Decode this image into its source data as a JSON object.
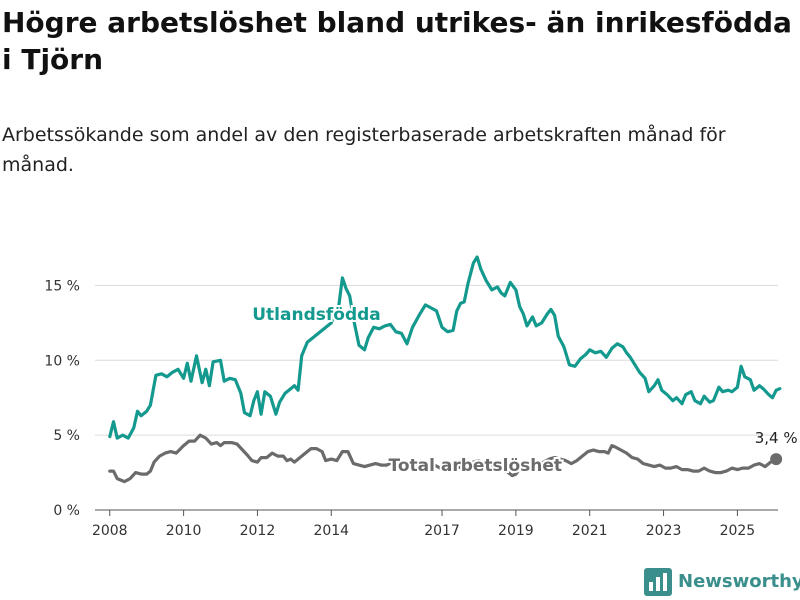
{
  "header": {
    "title": "Högre arbetslöshet bland utrikes- än inrikesfödda i Tjörn",
    "subtitle": "Arbetssökande som andel av den registerbaserade arbetskraften månad för månad."
  },
  "brand": {
    "name": "Newsworthy",
    "icon": "bar-chart-logo-icon",
    "color": "#3a8f8c"
  },
  "chart_data": {
    "type": "line",
    "x_unit": "year",
    "xlim": [
      2007.6,
      2026.1
    ],
    "ylim": [
      0,
      17.5
    ],
    "x_ticks": [
      2008,
      2010,
      2012,
      2014,
      2017,
      2019,
      2021,
      2023,
      2025
    ],
    "x_tick_labels": [
      "2008",
      "2010",
      "2012",
      "2014",
      "2017",
      "2019",
      "2021",
      "2023",
      "2025"
    ],
    "y_ticks": [
      0,
      5,
      10,
      15
    ],
    "y_tick_labels": [
      "0 %",
      "5 %",
      "10 %",
      "15 %"
    ],
    "grid": "horizontal",
    "series": [
      {
        "name": "Utlandsfödda",
        "color": "#14998e",
        "label_at": [
          2013.6,
          13.1
        ],
        "points": [
          [
            2008.0,
            4.9
          ],
          [
            2008.1,
            5.9
          ],
          [
            2008.2,
            4.8
          ],
          [
            2008.35,
            5.0
          ],
          [
            2008.5,
            4.8
          ],
          [
            2008.65,
            5.5
          ],
          [
            2008.75,
            6.6
          ],
          [
            2008.85,
            6.3
          ],
          [
            2009.0,
            6.6
          ],
          [
            2009.1,
            7.0
          ],
          [
            2009.25,
            9.0
          ],
          [
            2009.4,
            9.1
          ],
          [
            2009.55,
            8.9
          ],
          [
            2009.7,
            9.2
          ],
          [
            2009.85,
            9.4
          ],
          [
            2010.0,
            8.8
          ],
          [
            2010.1,
            9.8
          ],
          [
            2010.2,
            8.6
          ],
          [
            2010.35,
            10.3
          ],
          [
            2010.5,
            8.5
          ],
          [
            2010.6,
            9.4
          ],
          [
            2010.7,
            8.3
          ],
          [
            2010.8,
            9.9
          ],
          [
            2011.0,
            10.0
          ],
          [
            2011.1,
            8.6
          ],
          [
            2011.25,
            8.8
          ],
          [
            2011.4,
            8.7
          ],
          [
            2011.55,
            7.8
          ],
          [
            2011.65,
            6.5
          ],
          [
            2011.8,
            6.3
          ],
          [
            2011.9,
            7.3
          ],
          [
            2012.0,
            7.9
          ],
          [
            2012.1,
            6.4
          ],
          [
            2012.2,
            7.9
          ],
          [
            2012.35,
            7.6
          ],
          [
            2012.5,
            6.4
          ],
          [
            2012.6,
            7.2
          ],
          [
            2012.75,
            7.8
          ],
          [
            2012.9,
            8.1
          ],
          [
            2013.0,
            8.3
          ],
          [
            2013.1,
            8.0
          ],
          [
            2013.2,
            10.3
          ],
          [
            2013.35,
            11.2
          ],
          [
            2014.0,
            12.5
          ],
          [
            2014.1,
            13.2
          ],
          [
            2014.2,
            13.6
          ],
          [
            2014.3,
            15.5
          ],
          [
            2014.4,
            14.8
          ],
          [
            2014.5,
            14.3
          ],
          [
            2014.6,
            12.8
          ],
          [
            2014.75,
            11.0
          ],
          [
            2014.9,
            10.7
          ],
          [
            2015.0,
            11.5
          ],
          [
            2015.15,
            12.2
          ],
          [
            2015.3,
            12.1
          ],
          [
            2015.45,
            12.3
          ],
          [
            2015.6,
            12.4
          ],
          [
            2015.75,
            11.9
          ],
          [
            2015.9,
            11.8
          ],
          [
            2016.05,
            11.1
          ],
          [
            2016.2,
            12.2
          ],
          [
            2016.4,
            13.1
          ],
          [
            2016.55,
            13.7
          ],
          [
            2016.7,
            13.5
          ],
          [
            2016.85,
            13.3
          ],
          [
            2017.0,
            12.2
          ],
          [
            2017.15,
            11.9
          ],
          [
            2017.3,
            12.0
          ],
          [
            2017.4,
            13.3
          ],
          [
            2017.5,
            13.8
          ],
          [
            2017.6,
            13.9
          ],
          [
            2017.7,
            15.1
          ],
          [
            2017.85,
            16.5
          ],
          [
            2017.95,
            16.9
          ],
          [
            2018.05,
            16.1
          ],
          [
            2018.2,
            15.3
          ],
          [
            2018.35,
            14.7
          ],
          [
            2018.5,
            14.9
          ],
          [
            2018.6,
            14.5
          ],
          [
            2018.7,
            14.3
          ],
          [
            2018.85,
            15.2
          ],
          [
            2019.0,
            14.7
          ],
          [
            2019.1,
            13.6
          ],
          [
            2019.2,
            13.1
          ],
          [
            2019.3,
            12.3
          ],
          [
            2019.45,
            12.9
          ],
          [
            2019.55,
            12.3
          ],
          [
            2019.7,
            12.5
          ],
          [
            2019.85,
            13.1
          ],
          [
            2019.95,
            13.4
          ],
          [
            2020.05,
            13.0
          ],
          [
            2020.15,
            11.6
          ],
          [
            2020.3,
            10.9
          ],
          [
            2020.45,
            9.7
          ],
          [
            2020.6,
            9.6
          ],
          [
            2020.75,
            10.1
          ],
          [
            2020.9,
            10.4
          ],
          [
            2021.0,
            10.7
          ],
          [
            2021.15,
            10.5
          ],
          [
            2021.3,
            10.6
          ],
          [
            2021.45,
            10.2
          ],
          [
            2021.6,
            10.8
          ],
          [
            2021.75,
            11.1
          ],
          [
            2021.9,
            10.9
          ],
          [
            2022.0,
            10.5
          ],
          [
            2022.1,
            10.2
          ],
          [
            2022.2,
            9.8
          ],
          [
            2022.35,
            9.2
          ],
          [
            2022.5,
            8.8
          ],
          [
            2022.6,
            7.9
          ],
          [
            2022.75,
            8.3
          ],
          [
            2022.85,
            8.7
          ],
          [
            2022.95,
            8.0
          ],
          [
            2023.1,
            7.7
          ],
          [
            2023.25,
            7.3
          ],
          [
            2023.35,
            7.5
          ],
          [
            2023.5,
            7.1
          ],
          [
            2023.6,
            7.7
          ],
          [
            2023.75,
            7.9
          ],
          [
            2023.85,
            7.3
          ],
          [
            2024.0,
            7.1
          ],
          [
            2024.1,
            7.6
          ],
          [
            2024.25,
            7.2
          ],
          [
            2024.35,
            7.3
          ],
          [
            2024.5,
            8.2
          ],
          [
            2024.6,
            7.9
          ],
          [
            2024.75,
            8.0
          ],
          [
            2024.85,
            7.9
          ],
          [
            2025.0,
            8.2
          ],
          [
            2025.1,
            9.6
          ],
          [
            2025.2,
            8.9
          ],
          [
            2025.35,
            8.7
          ],
          [
            2025.45,
            8.0
          ],
          [
            2025.6,
            8.3
          ],
          [
            2025.7,
            8.1
          ],
          [
            2025.85,
            7.7
          ],
          [
            2025.95,
            7.5
          ],
          [
            2026.05,
            8.0
          ],
          [
            2026.15,
            8.1
          ]
        ]
      },
      {
        "name": "Total arbetslöshet",
        "color": "#6b6b6b",
        "label_at": [
          2017.9,
          3.0
        ],
        "end_label": "3,4 %",
        "points": [
          [
            2008.0,
            2.6
          ],
          [
            2008.1,
            2.6
          ],
          [
            2008.2,
            2.1
          ],
          [
            2008.3,
            2.0
          ],
          [
            2008.4,
            1.9
          ],
          [
            2008.55,
            2.1
          ],
          [
            2008.7,
            2.5
          ],
          [
            2008.85,
            2.4
          ],
          [
            2009.0,
            2.4
          ],
          [
            2009.1,
            2.6
          ],
          [
            2009.2,
            3.2
          ],
          [
            2009.35,
            3.6
          ],
          [
            2009.5,
            3.8
          ],
          [
            2009.65,
            3.9
          ],
          [
            2009.8,
            3.8
          ],
          [
            2010.0,
            4.3
          ],
          [
            2010.15,
            4.6
          ],
          [
            2010.3,
            4.6
          ],
          [
            2010.45,
            5.0
          ],
          [
            2010.6,
            4.8
          ],
          [
            2010.75,
            4.4
          ],
          [
            2010.9,
            4.5
          ],
          [
            2011.0,
            4.3
          ],
          [
            2011.1,
            4.5
          ],
          [
            2011.3,
            4.5
          ],
          [
            2011.45,
            4.4
          ],
          [
            2011.6,
            4.0
          ],
          [
            2011.75,
            3.6
          ],
          [
            2011.85,
            3.3
          ],
          [
            2012.0,
            3.2
          ],
          [
            2012.1,
            3.5
          ],
          [
            2012.25,
            3.5
          ],
          [
            2012.4,
            3.8
          ],
          [
            2012.55,
            3.6
          ],
          [
            2012.7,
            3.6
          ],
          [
            2012.8,
            3.3
          ],
          [
            2012.9,
            3.4
          ],
          [
            2013.0,
            3.2
          ],
          [
            2013.15,
            3.5
          ],
          [
            2013.3,
            3.8
          ],
          [
            2013.45,
            4.1
          ],
          [
            2013.6,
            4.1
          ],
          [
            2013.75,
            3.9
          ],
          [
            2013.85,
            3.3
          ],
          [
            2014.0,
            3.4
          ],
          [
            2014.15,
            3.3
          ],
          [
            2014.3,
            3.9
          ],
          [
            2014.45,
            3.9
          ],
          [
            2014.6,
            3.1
          ],
          [
            2014.75,
            3.0
          ],
          [
            2014.9,
            2.9
          ],
          [
            2015.05,
            3.0
          ],
          [
            2015.2,
            3.1
          ],
          [
            2015.35,
            3.0
          ],
          [
            2015.5,
            3.0
          ],
          [
            2015.65,
            3.2
          ],
          [
            2015.8,
            2.9
          ],
          [
            2015.95,
            2.7
          ],
          [
            2016.1,
            2.8
          ],
          [
            2016.2,
            3.0
          ],
          [
            2016.35,
            3.1
          ],
          [
            2016.5,
            3.1
          ],
          [
            2016.65,
            3.1
          ],
          [
            2016.8,
            3.0
          ],
          [
            2016.95,
            2.8
          ],
          [
            2017.1,
            2.7
          ],
          [
            2017.25,
            2.8
          ],
          [
            2017.4,
            2.8
          ],
          [
            2017.55,
            2.9
          ],
          [
            2017.7,
            3.0
          ],
          [
            2017.85,
            3.2
          ],
          [
            2018.0,
            3.3
          ],
          [
            2018.15,
            3.1
          ],
          [
            2018.3,
            2.9
          ],
          [
            2018.45,
            2.9
          ],
          [
            2018.6,
            2.9
          ],
          [
            2018.75,
            2.6
          ],
          [
            2018.9,
            2.3
          ],
          [
            2019.0,
            2.4
          ],
          [
            2019.15,
            2.9
          ],
          [
            2019.3,
            2.8
          ],
          [
            2019.45,
            3.1
          ],
          [
            2019.6,
            3.0
          ],
          [
            2019.75,
            3.2
          ],
          [
            2019.9,
            3.4
          ],
          [
            2020.05,
            3.5
          ],
          [
            2020.2,
            3.4
          ],
          [
            2020.35,
            3.3
          ],
          [
            2020.5,
            3.1
          ],
          [
            2020.65,
            3.3
          ],
          [
            2020.8,
            3.6
          ],
          [
            2020.95,
            3.9
          ],
          [
            2021.1,
            4.0
          ],
          [
            2021.25,
            3.9
          ],
          [
            2021.4,
            3.9
          ],
          [
            2021.5,
            3.8
          ],
          [
            2021.6,
            4.3
          ],
          [
            2021.7,
            4.2
          ],
          [
            2021.85,
            4.0
          ],
          [
            2022.0,
            3.8
          ],
          [
            2022.15,
            3.5
          ],
          [
            2022.3,
            3.4
          ],
          [
            2022.45,
            3.1
          ],
          [
            2022.6,
            3.0
          ],
          [
            2022.75,
            2.9
          ],
          [
            2022.9,
            3.0
          ],
          [
            2023.05,
            2.8
          ],
          [
            2023.2,
            2.8
          ],
          [
            2023.35,
            2.9
          ],
          [
            2023.5,
            2.7
          ],
          [
            2023.65,
            2.7
          ],
          [
            2023.8,
            2.6
          ],
          [
            2023.95,
            2.6
          ],
          [
            2024.1,
            2.8
          ],
          [
            2024.25,
            2.6
          ],
          [
            2024.4,
            2.5
          ],
          [
            2024.55,
            2.5
          ],
          [
            2024.7,
            2.6
          ],
          [
            2024.85,
            2.8
          ],
          [
            2025.0,
            2.7
          ],
          [
            2025.15,
            2.8
          ],
          [
            2025.3,
            2.8
          ],
          [
            2025.45,
            3.0
          ],
          [
            2025.6,
            3.1
          ],
          [
            2025.75,
            2.9
          ],
          [
            2025.9,
            3.2
          ],
          [
            2026.05,
            3.4
          ]
        ]
      }
    ]
  }
}
